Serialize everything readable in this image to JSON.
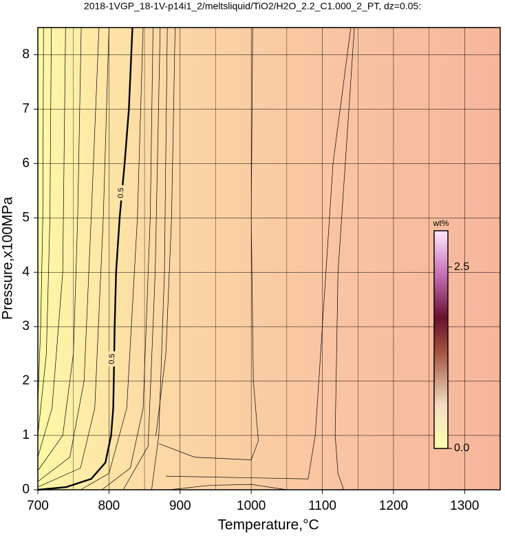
{
  "chart_data": {
    "type": "contour",
    "title": "2018-1VGP_18-1V-p14i1_2/meltsliquid/TiO2/H2O_2.2_C1.000_2_PT, dz=0.05:",
    "x_label": "Temperature,°C",
    "y_label": "Pressure,x100MPa",
    "xlim": [
      700,
      1350
    ],
    "ylim": [
      0,
      8.5
    ],
    "xticks": [
      700,
      800,
      900,
      1000,
      1100,
      1200,
      1300
    ],
    "yticks": [
      0,
      1,
      2,
      3,
      4,
      5,
      6,
      7,
      8
    ],
    "x_minor_grid": [
      750,
      850,
      950,
      1050,
      1150,
      1250
    ],
    "grid": true,
    "colorbar": {
      "label": "wt%",
      "zlim": [
        0,
        3
      ],
      "ticks": [
        {
          "value": 0,
          "label": "0.0"
        },
        2.5
      ]
    },
    "contours": [
      {
        "level": 0.5,
        "x": [
          700,
          740,
          775,
          795,
          803,
          806,
          807,
          808,
          810,
          815,
          822,
          828,
          833
        ],
        "y": [
          0,
          0.05,
          0.2,
          0.5,
          1,
          1.5,
          2.2,
          3,
          4,
          5,
          6,
          7,
          8.5
        ]
      },
      {
        "x": [
          700,
          704,
          707,
          708
        ],
        "y": [
          1.6,
          3,
          5,
          8.5
        ]
      },
      {
        "x": [
          700,
          712,
          717,
          719
        ],
        "y": [
          1.0,
          2.5,
          5,
          8.5
        ]
      },
      {
        "x": [
          700,
          720,
          735,
          739
        ],
        "y": [
          0.6,
          1.5,
          4,
          8.5
        ]
      },
      {
        "x": [
          700,
          735,
          750,
          756,
          761
        ],
        "y": [
          0.35,
          1,
          2.5,
          5,
          8.5
        ]
      },
      {
        "x": [
          700,
          745,
          765,
          775,
          786
        ],
        "y": [
          0.15,
          0.6,
          2,
          5,
          8.5
        ]
      },
      {
        "x": [
          700,
          760,
          780,
          792,
          800
        ],
        "y": [
          0.05,
          0.4,
          1.5,
          5,
          8.5
        ]
      },
      {
        "x": [
          760,
          800,
          825,
          840,
          848
        ],
        "y": [
          0,
          0.3,
          1.5,
          5,
          8.5
        ]
      },
      {
        "x": [
          790,
          830,
          848,
          858,
          862
        ],
        "y": [
          0,
          0.4,
          1.5,
          5,
          8.5
        ]
      },
      {
        "x": [
          820,
          855,
          865,
          872
        ],
        "y": [
          0,
          0.8,
          4,
          8.5
        ]
      },
      {
        "x": [
          860,
          870,
          878,
          882
        ],
        "y": [
          0,
          1,
          4,
          8.5
        ]
      },
      {
        "x": [
          866,
          880,
          888,
          893
        ],
        "y": [
          1.0,
          2.5,
          5,
          8.5
        ]
      },
      {
        "x": [
          870,
          920,
          1000,
          1010,
          1003,
          1000,
          1002
        ],
        "y": [
          0.85,
          0.6,
          0.55,
          0.9,
          2,
          5,
          8.5
        ]
      },
      {
        "x": [
          880,
          1080,
          1090,
          1100,
          1115,
          1140
        ],
        "y": [
          0.25,
          0.2,
          1,
          3,
          6,
          8.5
        ]
      },
      {
        "x": [
          1130,
          1122,
          1118,
          1122,
          1145
        ],
        "y": [
          0,
          0.3,
          1,
          4,
          8.5
        ]
      },
      {
        "x": [
          885,
          940,
          1000,
          1050
        ],
        "y": [
          0,
          0.08,
          0.1,
          0
        ]
      }
    ]
  }
}
